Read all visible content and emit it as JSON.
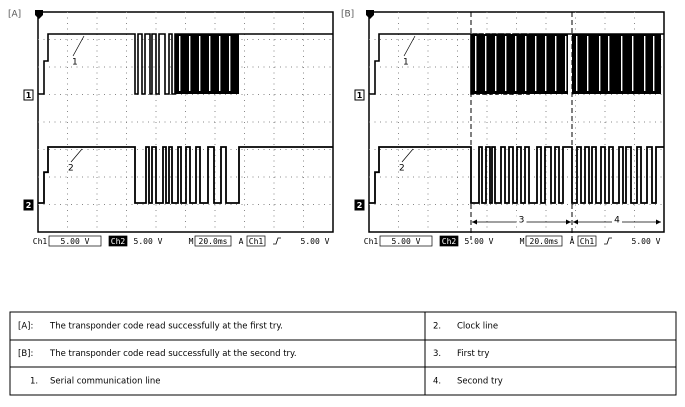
{
  "panels": [
    {
      "label": "[A]",
      "trace_labels": [
        "1",
        "2"
      ],
      "channel_markers": [
        "1",
        "2"
      ],
      "status": [
        "Ch1",
        "5.00 V",
        "Ch2",
        "5.00 V",
        "M",
        "20.0ms",
        "A",
        "Ch1",
        "5.00 V"
      ]
    },
    {
      "label": "[B]",
      "trace_labels": [
        "1",
        "2"
      ],
      "channel_markers": [
        "1",
        "2"
      ],
      "status": [
        "Ch1",
        "5.00 V",
        "Ch2",
        "5.00 V",
        "M",
        "20.0ms",
        "A",
        "Ch1",
        "5.00 V"
      ],
      "intervals": [
        "3",
        "4"
      ]
    }
  ],
  "legend": {
    "rows": [
      [
        {
          "key": "[A]:",
          "text": "The transponder code read successfully at the first try."
        },
        {
          "key": "2.",
          "text": "Clock line"
        }
      ],
      [
        {
          "key": "[B]:",
          "text": "The transponder code read successfully at the second try."
        },
        {
          "key": "3.",
          "text": "First try"
        }
      ],
      [
        {
          "key": "1.",
          "text": "Serial communication line"
        },
        {
          "key": "4.",
          "text": "Second try"
        }
      ]
    ]
  }
}
